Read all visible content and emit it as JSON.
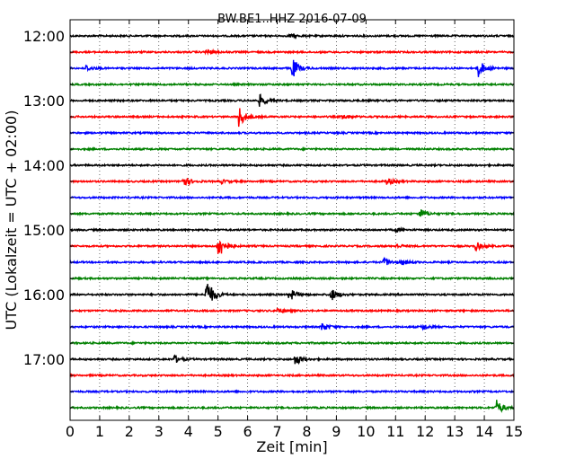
{
  "chart_data": {
    "type": "line",
    "title": "BW.BE1..HHZ 2016-07-09",
    "xlabel": "Zeit  [min]",
    "ylabel": "UTC (Lokalzeit = UTC + 02:00)",
    "xlim": [
      0,
      15
    ],
    "x_ticks": [
      "0",
      "1",
      "2",
      "3",
      "4",
      "5",
      "6",
      "7",
      "8",
      "9",
      "10",
      "11",
      "12",
      "13",
      "14",
      "15"
    ],
    "y_tick_labels": [
      "12:00",
      "13:00",
      "14:00",
      "15:00",
      "16:00",
      "17:00"
    ],
    "grid": "vertical dotted at each minute",
    "trace_interval_min": 15,
    "trace_start": "12:00",
    "colors": [
      "#000000",
      "#ff0000",
      "#0000ff",
      "#008000"
    ],
    "traces": [
      {
        "start": "12:00",
        "color": "#000000",
        "events": [
          {
            "t": 7.4,
            "amp": 0.2
          }
        ]
      },
      {
        "start": "12:15",
        "color": "#ff0000",
        "events": [
          {
            "t": 4.6,
            "amp": 0.3
          }
        ]
      },
      {
        "start": "12:30",
        "color": "#0000ff",
        "events": [
          {
            "t": 0.5,
            "amp": 0.4
          },
          {
            "t": 7.5,
            "amp": 1.2
          },
          {
            "t": 13.8,
            "amp": 1.0
          }
        ]
      },
      {
        "start": "12:45",
        "color": "#008000",
        "events": []
      },
      {
        "start": "13:00",
        "color": "#000000",
        "events": [
          {
            "t": 6.4,
            "amp": 0.7
          }
        ]
      },
      {
        "start": "13:15",
        "color": "#ff0000",
        "events": [
          {
            "t": 5.7,
            "amp": 1.2
          },
          {
            "t": 9.2,
            "amp": 0.3
          }
        ]
      },
      {
        "start": "13:30",
        "color": "#0000ff",
        "events": []
      },
      {
        "start": "13:45",
        "color": "#008000",
        "events": []
      },
      {
        "start": "14:00",
        "color": "#000000",
        "events": []
      },
      {
        "start": "14:15",
        "color": "#ff0000",
        "events": [
          {
            "t": 3.8,
            "amp": 0.7
          },
          {
            "t": 5.1,
            "amp": 0.2
          },
          {
            "t": 10.7,
            "amp": 0.4
          }
        ]
      },
      {
        "start": "14:30",
        "color": "#0000ff",
        "events": []
      },
      {
        "start": "14:45",
        "color": "#008000",
        "events": [
          {
            "t": 11.8,
            "amp": 0.6
          }
        ]
      },
      {
        "start": "15:00",
        "color": "#000000",
        "events": [
          {
            "t": 11.0,
            "amp": 0.2
          }
        ]
      },
      {
        "start": "15:15",
        "color": "#ff0000",
        "events": [
          {
            "t": 5.0,
            "amp": 1.6
          },
          {
            "t": 11.0,
            "amp": 0.2
          },
          {
            "t": 13.7,
            "amp": 0.5
          }
        ]
      },
      {
        "start": "15:30",
        "color": "#0000ff",
        "events": [
          {
            "t": 10.6,
            "amp": 0.5
          },
          {
            "t": 11.2,
            "amp": 0.3
          }
        ]
      },
      {
        "start": "15:45",
        "color": "#008000",
        "events": []
      },
      {
        "start": "16:00",
        "color": "#000000",
        "events": [
          {
            "t": 4.6,
            "amp": 2.0
          },
          {
            "t": 7.4,
            "amp": 0.8
          },
          {
            "t": 8.8,
            "amp": 0.8
          }
        ]
      },
      {
        "start": "16:15",
        "color": "#ff0000",
        "events": [
          {
            "t": 7.0,
            "amp": 0.3
          }
        ]
      },
      {
        "start": "16:30",
        "color": "#0000ff",
        "events": [
          {
            "t": 8.5,
            "amp": 0.5
          },
          {
            "t": 11.9,
            "amp": 0.4
          }
        ]
      },
      {
        "start": "16:45",
        "color": "#008000",
        "events": []
      },
      {
        "start": "17:00",
        "color": "#000000",
        "events": [
          {
            "t": 3.5,
            "amp": 0.5
          },
          {
            "t": 7.6,
            "amp": 0.7
          }
        ]
      },
      {
        "start": "17:15",
        "color": "#ff0000",
        "events": []
      },
      {
        "start": "17:30",
        "color": "#0000ff",
        "events": []
      },
      {
        "start": "17:45",
        "color": "#008000",
        "events": [
          {
            "t": 14.4,
            "amp": 0.9
          }
        ]
      }
    ]
  }
}
